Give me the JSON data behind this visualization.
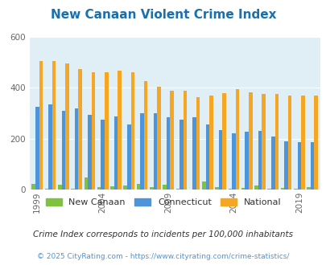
{
  "title": "New Canaan Violent Crime Index",
  "title_color": "#1a6faf",
  "years": [
    1999,
    2000,
    2001,
    2002,
    2003,
    2004,
    2005,
    2006,
    2007,
    2008,
    2009,
    2010,
    2011,
    2012,
    2013,
    2014,
    2015,
    2016,
    2017,
    2018,
    2019,
    2020
  ],
  "new_canaan": [
    22,
    3,
    18,
    3,
    47,
    10,
    12,
    17,
    23,
    9,
    20,
    4,
    1,
    30,
    8,
    2,
    7,
    16,
    4,
    5,
    2,
    8
  ],
  "connecticut": [
    325,
    335,
    310,
    318,
    295,
    275,
    287,
    256,
    300,
    300,
    285,
    275,
    285,
    255,
    235,
    220,
    228,
    230,
    208,
    190,
    185,
    185
  ],
  "national": [
    507,
    507,
    497,
    474,
    462,
    463,
    467,
    461,
    428,
    404,
    388,
    388,
    362,
    371,
    380,
    395,
    382,
    375,
    375,
    369,
    369,
    369
  ],
  "new_canaan_color": "#7fc241",
  "connecticut_color": "#4d94db",
  "national_color": "#f5a623",
  "bg_color": "#e0eff5",
  "ylim": [
    0,
    600
  ],
  "yticks": [
    0,
    200,
    400,
    600
  ],
  "bar_width": 0.28,
  "subtitle": "Crime Index corresponds to incidents per 100,000 inhabitants",
  "footer": "© 2025 CityRating.com - https://www.cityrating.com/crime-statistics/",
  "grid_color": "#ffffff",
  "tick_label_color": "#666666",
  "legend_label_color": "#333333",
  "subtitle_color": "#333333",
  "footer_color": "#4d94db"
}
